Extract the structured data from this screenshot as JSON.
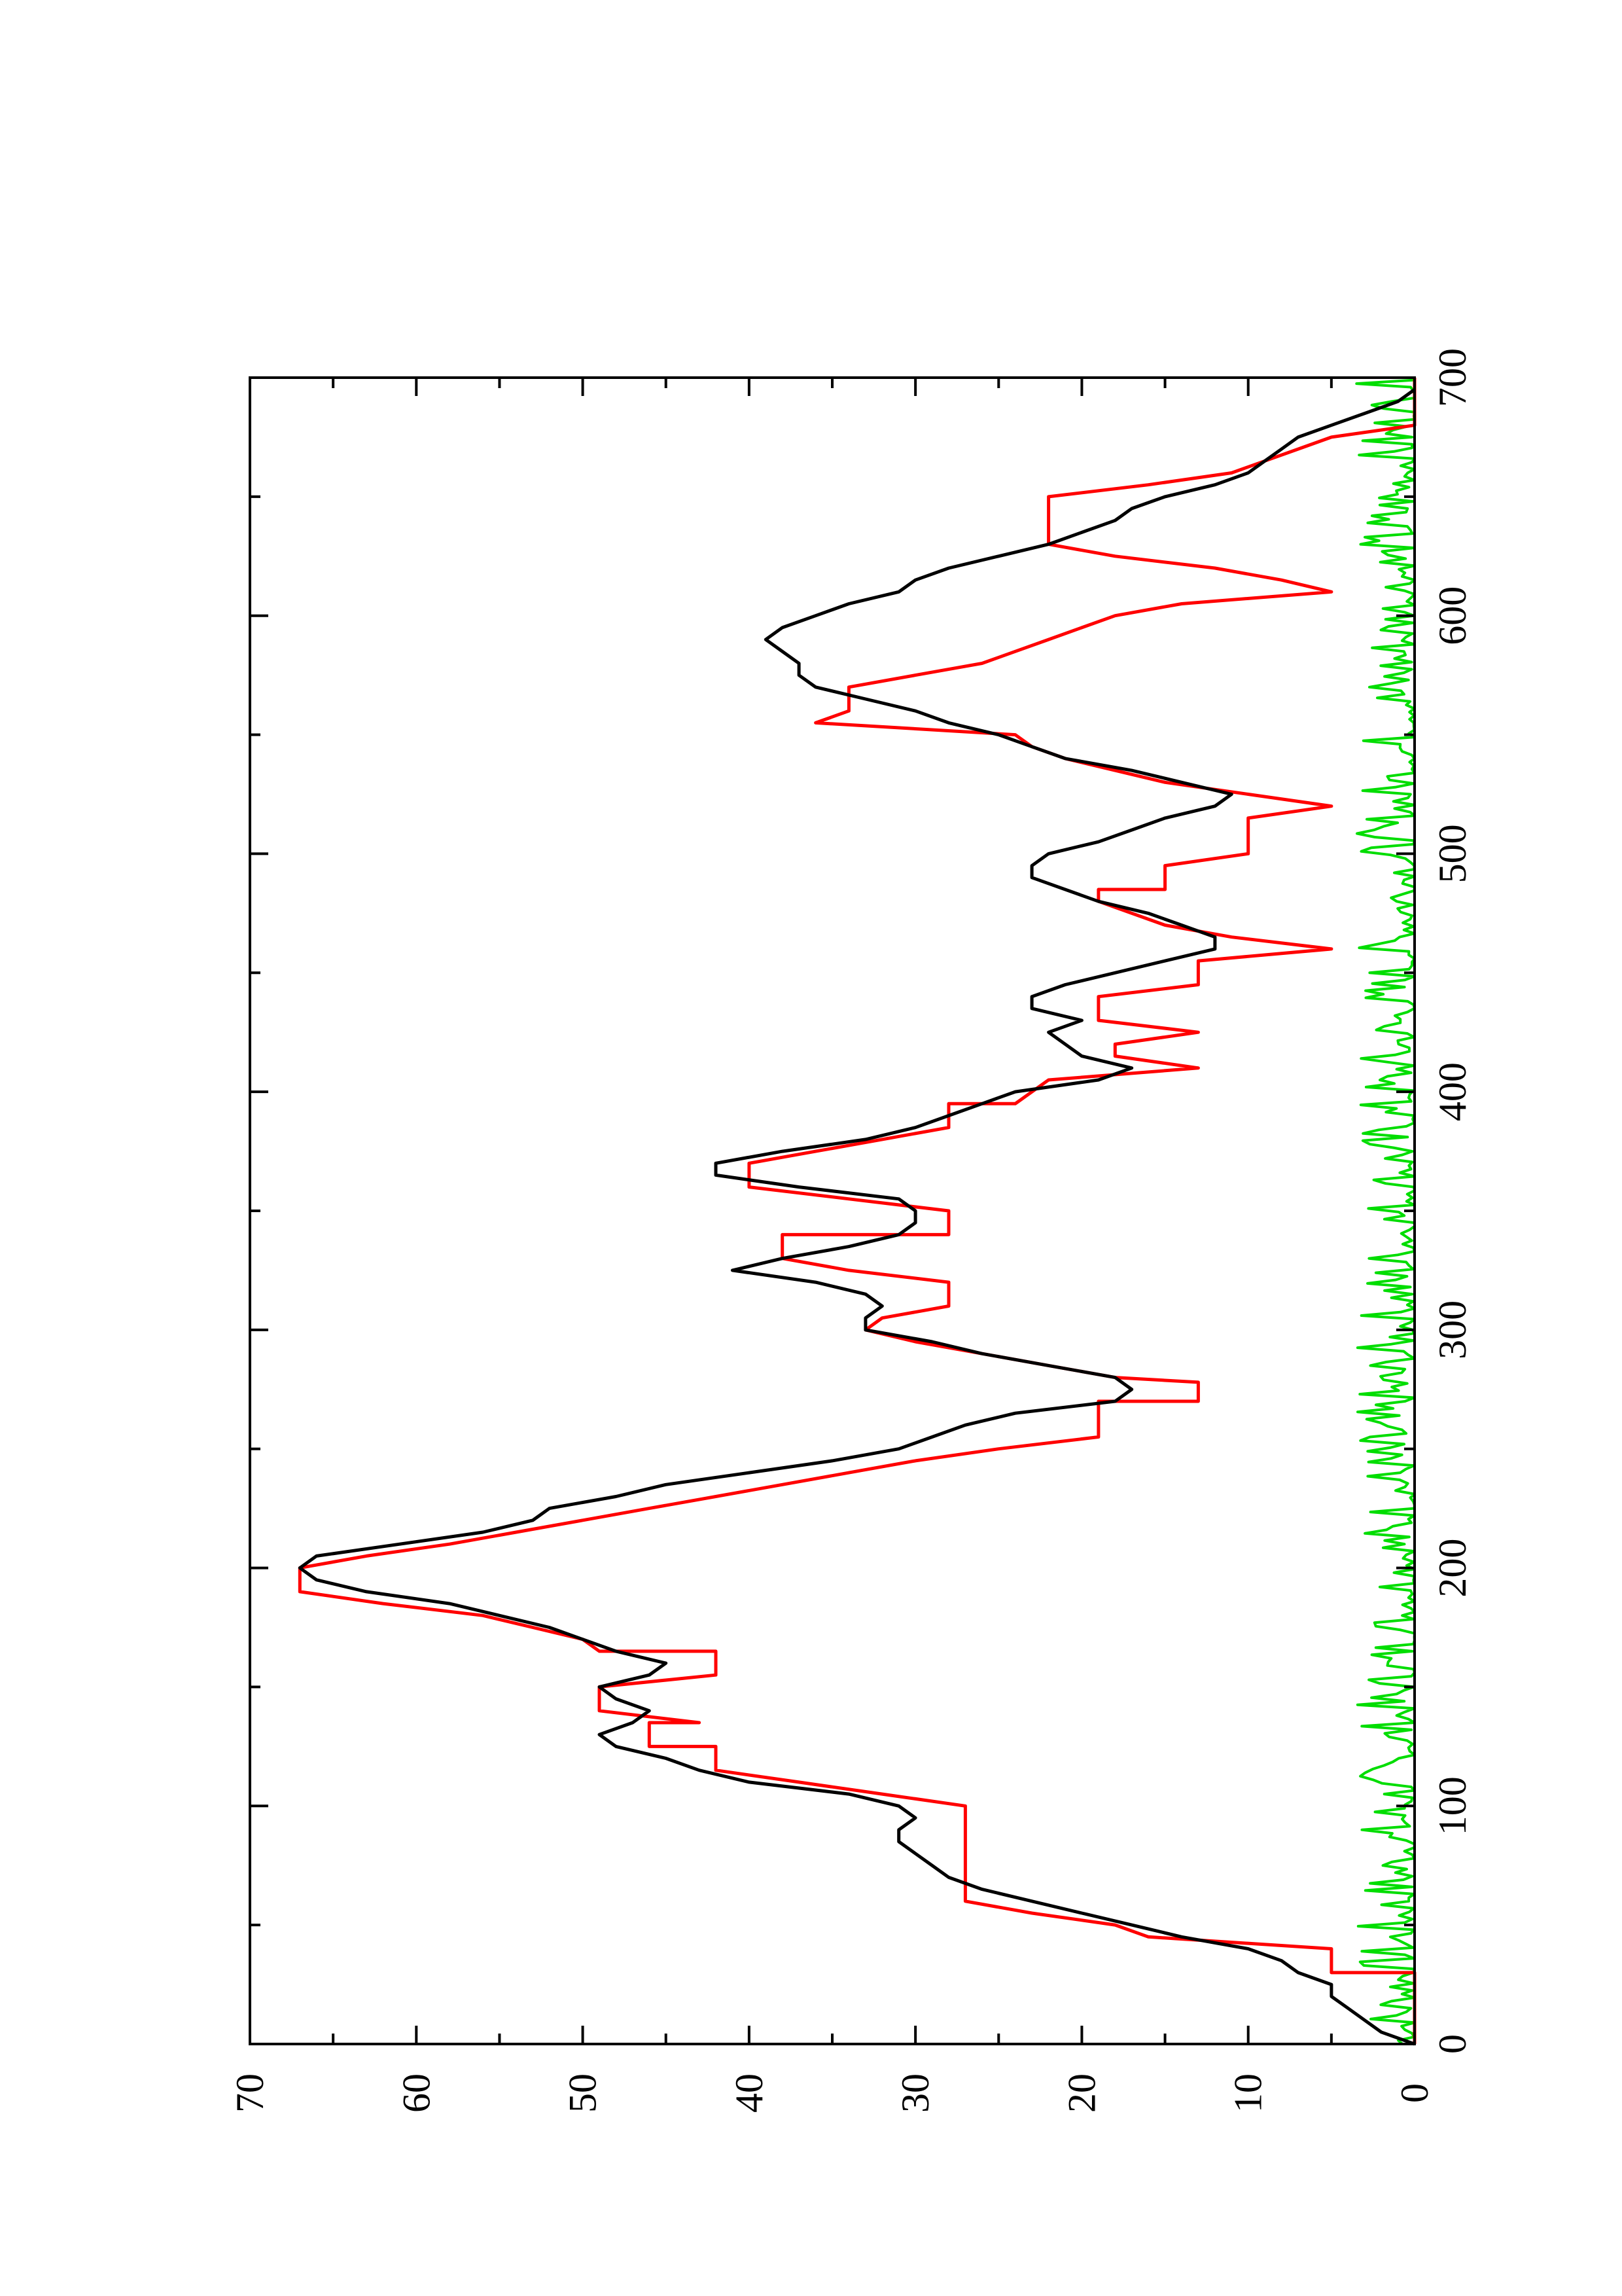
{
  "chart_data": {
    "type": "line",
    "title": "",
    "xlabel": "",
    "ylabel": "",
    "orientation": "rotated-90-ccw",
    "xlim": [
      0,
      700
    ],
    "ylim": [
      0,
      70
    ],
    "x_ticks": [
      0,
      100,
      200,
      300,
      400,
      500,
      600,
      700
    ],
    "x_tick_labels": [
      "0",
      "100",
      "200",
      "300",
      "400",
      "500",
      "600",
      "700"
    ],
    "y_ticks": [
      0,
      10,
      20,
      30,
      40,
      50,
      60,
      70
    ],
    "y_tick_labels": [
      "0",
      "10",
      "20",
      "30",
      "40",
      "50",
      "60",
      "70"
    ],
    "grid": false,
    "legend": "none",
    "series": [
      {
        "color": "#000000",
        "style": "smooth",
        "points": [
          [
            0,
            0
          ],
          [
            5,
            2
          ],
          [
            10,
            3
          ],
          [
            15,
            4
          ],
          [
            20,
            5
          ],
          [
            25,
            5
          ],
          [
            30,
            7
          ],
          [
            35,
            8
          ],
          [
            40,
            10
          ],
          [
            45,
            14
          ],
          [
            50,
            17
          ],
          [
            55,
            20
          ],
          [
            60,
            23
          ],
          [
            65,
            26
          ],
          [
            70,
            28
          ],
          [
            75,
            29
          ],
          [
            80,
            30
          ],
          [
            85,
            31
          ],
          [
            90,
            31
          ],
          [
            95,
            30
          ],
          [
            100,
            31
          ],
          [
            105,
            34
          ],
          [
            110,
            40
          ],
          [
            115,
            43
          ],
          [
            120,
            45
          ],
          [
            125,
            48
          ],
          [
            130,
            49
          ],
          [
            135,
            47
          ],
          [
            140,
            46
          ],
          [
            145,
            48
          ],
          [
            150,
            49
          ],
          [
            155,
            46
          ],
          [
            160,
            45
          ],
          [
            165,
            48
          ],
          [
            170,
            50
          ],
          [
            175,
            52
          ],
          [
            180,
            55
          ],
          [
            185,
            58
          ],
          [
            190,
            63
          ],
          [
            195,
            66
          ],
          [
            200,
            67
          ],
          [
            205,
            66
          ],
          [
            210,
            61
          ],
          [
            215,
            56
          ],
          [
            220,
            53
          ],
          [
            225,
            52
          ],
          [
            230,
            48
          ],
          [
            235,
            45
          ],
          [
            240,
            40
          ],
          [
            245,
            35
          ],
          [
            250,
            31
          ],
          [
            255,
            29
          ],
          [
            260,
            27
          ],
          [
            265,
            24
          ],
          [
            270,
            18
          ],
          [
            275,
            17
          ],
          [
            280,
            18
          ],
          [
            285,
            22
          ],
          [
            290,
            26
          ],
          [
            295,
            29
          ],
          [
            300,
            33
          ],
          [
            305,
            33
          ],
          [
            310,
            32
          ],
          [
            315,
            33
          ],
          [
            320,
            36
          ],
          [
            325,
            41
          ],
          [
            330,
            38
          ],
          [
            335,
            34
          ],
          [
            340,
            31
          ],
          [
            345,
            30
          ],
          [
            350,
            30
          ],
          [
            355,
            31
          ],
          [
            360,
            37
          ],
          [
            365,
            42
          ],
          [
            370,
            42
          ],
          [
            375,
            38
          ],
          [
            380,
            33
          ],
          [
            385,
            30
          ],
          [
            390,
            28
          ],
          [
            395,
            26
          ],
          [
            400,
            24
          ],
          [
            405,
            19
          ],
          [
            410,
            17
          ],
          [
            415,
            20
          ],
          [
            420,
            21
          ],
          [
            425,
            22
          ],
          [
            430,
            20
          ],
          [
            435,
            23
          ],
          [
            440,
            23
          ],
          [
            445,
            21
          ],
          [
            450,
            18
          ],
          [
            455,
            15
          ],
          [
            460,
            12
          ],
          [
            465,
            12
          ],
          [
            470,
            14
          ],
          [
            475,
            16
          ],
          [
            480,
            19
          ],
          [
            485,
            21
          ],
          [
            490,
            23
          ],
          [
            495,
            23
          ],
          [
            500,
            22
          ],
          [
            505,
            19
          ],
          [
            510,
            17
          ],
          [
            515,
            15
          ],
          [
            520,
            12
          ],
          [
            525,
            11
          ],
          [
            530,
            14
          ],
          [
            535,
            17
          ],
          [
            540,
            21
          ],
          [
            545,
            23
          ],
          [
            550,
            25
          ],
          [
            555,
            28
          ],
          [
            560,
            30
          ],
          [
            565,
            33
          ],
          [
            570,
            36
          ],
          [
            575,
            37
          ],
          [
            580,
            37
          ],
          [
            585,
            38
          ],
          [
            590,
            39
          ],
          [
            595,
            38
          ],
          [
            600,
            36
          ],
          [
            605,
            34
          ],
          [
            610,
            31
          ],
          [
            615,
            30
          ],
          [
            620,
            28
          ],
          [
            625,
            25
          ],
          [
            630,
            22
          ],
          [
            635,
            20
          ],
          [
            640,
            18
          ],
          [
            645,
            17
          ],
          [
            650,
            15
          ],
          [
            655,
            12
          ],
          [
            660,
            10
          ],
          [
            665,
            9
          ],
          [
            670,
            8
          ],
          [
            675,
            7
          ],
          [
            680,
            5
          ],
          [
            685,
            3
          ],
          [
            690,
            1
          ],
          [
            695,
            0
          ]
        ]
      },
      {
        "color": "#ff0000",
        "style": "step",
        "points": [
          [
            0,
            0
          ],
          [
            30,
            0
          ],
          [
            30,
            5
          ],
          [
            40,
            5
          ],
          [
            45,
            16
          ],
          [
            50,
            18
          ],
          [
            55,
            23
          ],
          [
            60,
            27
          ],
          [
            100,
            27
          ],
          [
            105,
            32
          ],
          [
            110,
            37
          ],
          [
            115,
            42
          ],
          [
            125,
            42
          ],
          [
            125,
            46
          ],
          [
            135,
            46
          ],
          [
            135,
            43
          ],
          [
            140,
            49
          ],
          [
            150,
            49
          ],
          [
            155,
            42
          ],
          [
            165,
            42
          ],
          [
            165,
            49
          ],
          [
            170,
            50
          ],
          [
            175,
            53
          ],
          [
            180,
            56
          ],
          [
            185,
            62
          ],
          [
            190,
            67
          ],
          [
            200,
            67
          ],
          [
            205,
            63
          ],
          [
            210,
            58
          ],
          [
            215,
            54
          ],
          [
            220,
            50
          ],
          [
            225,
            46
          ],
          [
            230,
            42
          ],
          [
            235,
            38
          ],
          [
            240,
            34
          ],
          [
            245,
            30
          ],
          [
            250,
            25
          ],
          [
            255,
            19
          ],
          [
            270,
            19
          ],
          [
            270,
            13
          ],
          [
            278,
            13
          ],
          [
            280,
            18
          ],
          [
            285,
            22
          ],
          [
            290,
            26
          ],
          [
            295,
            30
          ],
          [
            300,
            33
          ],
          [
            305,
            32
          ],
          [
            310,
            28
          ],
          [
            320,
            28
          ],
          [
            325,
            34
          ],
          [
            330,
            38
          ],
          [
            340,
            38
          ],
          [
            340,
            28
          ],
          [
            350,
            28
          ],
          [
            355,
            34
          ],
          [
            360,
            40
          ],
          [
            370,
            40
          ],
          [
            375,
            36
          ],
          [
            380,
            32
          ],
          [
            385,
            28
          ],
          [
            395,
            28
          ],
          [
            395,
            24
          ],
          [
            405,
            22
          ],
          [
            410,
            13
          ],
          [
            415,
            18
          ],
          [
            420,
            18
          ],
          [
            425,
            13
          ],
          [
            430,
            19
          ],
          [
            440,
            19
          ],
          [
            445,
            13
          ],
          [
            455,
            13
          ],
          [
            460,
            5
          ],
          [
            465,
            11
          ],
          [
            470,
            15
          ],
          [
            480,
            19
          ],
          [
            485,
            19
          ],
          [
            485,
            15
          ],
          [
            495,
            15
          ],
          [
            500,
            10
          ],
          [
            515,
            10
          ],
          [
            520,
            5
          ],
          [
            525,
            10
          ],
          [
            530,
            15
          ],
          [
            540,
            21
          ],
          [
            545,
            23
          ],
          [
            550,
            24
          ],
          [
            555,
            36
          ],
          [
            560,
            34
          ],
          [
            570,
            34
          ],
          [
            575,
            30
          ],
          [
            580,
            26
          ],
          [
            585,
            24
          ],
          [
            590,
            22
          ],
          [
            595,
            20
          ],
          [
            600,
            18
          ],
          [
            605,
            14
          ],
          [
            610,
            5
          ],
          [
            615,
            8
          ],
          [
            620,
            12
          ],
          [
            625,
            18
          ],
          [
            630,
            22
          ],
          [
            650,
            22
          ],
          [
            655,
            16
          ],
          [
            660,
            11
          ],
          [
            665,
            9
          ],
          [
            670,
            7
          ],
          [
            675,
            5
          ],
          [
            680,
            0
          ],
          [
            700,
            0
          ]
        ]
      },
      {
        "color": "#00dd00",
        "style": "noise",
        "baseline": 0,
        "max_amplitude": 3.5,
        "x_range": [
          0,
          700
        ]
      }
    ]
  }
}
